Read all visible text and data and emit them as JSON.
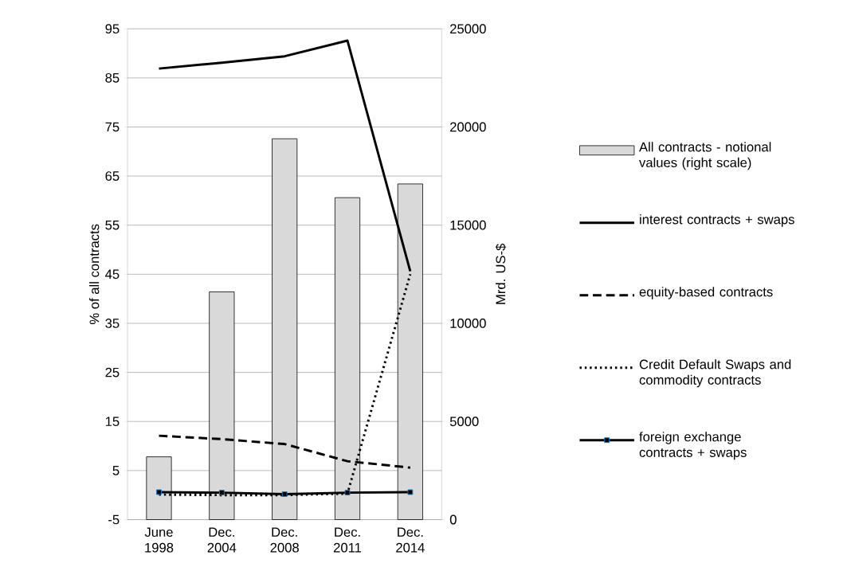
{
  "chart_data": {
    "type": "line",
    "categories": [
      "June 1998",
      "Dec. 2004",
      "Dec. 2008",
      "Dec. 2011",
      "Dec. 2014"
    ],
    "ylabel": "% of all contracts",
    "y2label": "Mrd. US-$",
    "ylim": [
      -5,
      95
    ],
    "yticks": [
      -5,
      5,
      15,
      25,
      35,
      45,
      55,
      65,
      75,
      85,
      95
    ],
    "y2lim": [
      0,
      25000
    ],
    "y2ticks": [
      0,
      5000,
      10000,
      15000,
      20000,
      25000
    ],
    "grid": "y",
    "legend": "right",
    "series": [
      {
        "name": "All contracts - notional values (right scale)",
        "type": "bar",
        "axis": "y2",
        "color": "#d9d9d9",
        "values": [
          3200,
          11600,
          19400,
          16400,
          17100
        ]
      },
      {
        "name": "interest contracts + swaps",
        "color": "#000000",
        "line_style": "solid",
        "marker": "none",
        "values": [
          86.9,
          88.1,
          89.4,
          92.6,
          45.6
        ]
      },
      {
        "name": "equity-based contracts",
        "color": "#000000",
        "line_style": "dashed",
        "marker": "none",
        "values": [
          12.1,
          11.4,
          10.4,
          6.9,
          5.6
        ]
      },
      {
        "name": "Credit Default Swaps and commodity contracts",
        "color": "#000000",
        "line_style": "dotted",
        "marker": "none",
        "values": [
          0.1,
          0.0,
          0.0,
          0.3,
          45.0
        ]
      },
      {
        "name": "foreign exchange contracts + swaps",
        "color": "#000000",
        "line_style": "solid",
        "marker": "square",
        "values": [
          0.6,
          0.5,
          0.2,
          0.5,
          0.6
        ]
      }
    ]
  }
}
